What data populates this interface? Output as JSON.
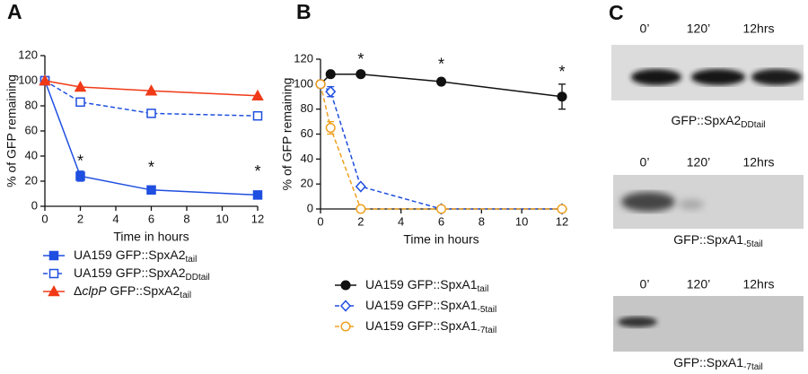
{
  "chart_data": [
    {
      "type": "line",
      "panel_label": "A",
      "xlabel": "Time in hours",
      "ylabel": "% of GFP remaining",
      "xlim": [
        0,
        12
      ],
      "xticks": [
        0,
        2,
        4,
        6,
        8,
        10,
        12
      ],
      "ylim": [
        0,
        120
      ],
      "yticks": [
        0,
        20,
        40,
        60,
        80,
        100,
        120
      ],
      "series": [
        {
          "name": [
            {
              "text": "UA159 GFP::SpxA2"
            },
            {
              "text": "tail",
              "sub": true
            }
          ],
          "color": "#1f4fe0",
          "marker": "square",
          "filled": true,
          "dashed": false,
          "x": [
            0,
            2,
            6,
            12
          ],
          "values": [
            100,
            24,
            13,
            9
          ],
          "errors": [
            null,
            4,
            2,
            3
          ]
        },
        {
          "name": [
            {
              "text": "UA159 GFP::SpxA2"
            },
            {
              "text": "DDtail",
              "sub": true
            }
          ],
          "color": "#1f4fe0",
          "marker": "square",
          "filled": false,
          "dashed": true,
          "x": [
            0,
            2,
            6,
            12
          ],
          "values": [
            100,
            83,
            74,
            72
          ],
          "errors": [
            null,
            2,
            null,
            null
          ]
        },
        {
          "name": [
            {
              "text": "Δ"
            },
            {
              "text": "clpP",
              "italic": true
            },
            {
              "text": " GFP::SpxA2"
            },
            {
              "text": "tail",
              "sub": true
            }
          ],
          "color": "#f03a17",
          "marker": "triangle",
          "filled": true,
          "dashed": false,
          "x": [
            0,
            2,
            6,
            12
          ],
          "values": [
            100,
            95,
            92,
            88
          ],
          "errors": [
            null,
            null,
            null,
            null
          ]
        }
      ],
      "annotations": [
        {
          "text": "*",
          "x": 2,
          "y": 38
        },
        {
          "text": "*",
          "x": 6,
          "y": 33
        },
        {
          "text": "*",
          "x": 12,
          "y": 30
        }
      ]
    },
    {
      "type": "line",
      "panel_label": "B",
      "xlabel": "Time in hours",
      "ylabel": "% of GFP remaining",
      "xlim": [
        0,
        12
      ],
      "xticks": [
        0,
        2,
        4,
        6,
        8,
        10,
        12
      ],
      "ylim": [
        0,
        120
      ],
      "yticks": [
        0,
        20,
        40,
        60,
        80,
        100,
        120
      ],
      "series": [
        {
          "name": [
            {
              "text": "UA159 GFP::SpxA1"
            },
            {
              "text": "tail",
              "sub": true
            }
          ],
          "color": "#111111",
          "marker": "circle",
          "filled": true,
          "dashed": false,
          "x": [
            0,
            0.5,
            2,
            6,
            12
          ],
          "values": [
            100,
            108,
            108,
            102,
            90
          ],
          "errors": [
            null,
            null,
            2,
            null,
            10
          ]
        },
        {
          "name": [
            {
              "text": "UA159 GFP::SpxA1"
            },
            {
              "text": "-5tail",
              "sub": true
            }
          ],
          "color": "#1f4fe0",
          "marker": "diamond",
          "filled": false,
          "dashed": true,
          "x": [
            0,
            0.5,
            2,
            6,
            12
          ],
          "values": [
            100,
            94,
            18,
            0,
            0
          ],
          "errors": [
            null,
            4,
            null,
            null,
            null
          ]
        },
        {
          "name": [
            {
              "text": "UA159 GFP::SpxA1"
            },
            {
              "text": "-7tail",
              "sub": true
            }
          ],
          "color": "#f0a020",
          "marker": "circle",
          "filled": false,
          "dashed": true,
          "x": [
            0,
            0.5,
            2,
            6,
            12
          ],
          "values": [
            100,
            65,
            0,
            0,
            0
          ],
          "errors": [
            null,
            5,
            null,
            null,
            null
          ]
        }
      ],
      "annotations": [
        {
          "text": "*",
          "x": 2,
          "y": 122
        },
        {
          "text": "*",
          "x": 6,
          "y": 118
        },
        {
          "text": "*",
          "x": 12,
          "y": 112
        }
      ]
    }
  ],
  "blot_panel": {
    "panel_label": "C",
    "blots": [
      {
        "lanes": [
          "0’",
          "120’",
          "12hrs"
        ],
        "caption": [
          {
            "text": "GFP::SpxA2"
          },
          {
            "text": "DDtail",
            "sub": true
          }
        ]
      },
      {
        "lanes": [
          "0’",
          "120’",
          "12hrs"
        ],
        "caption": [
          {
            "text": "GFP::SpxA1"
          },
          {
            "text": "-5tail",
            "sub": true
          }
        ]
      },
      {
        "lanes": [
          "0’",
          "120’",
          "12hrs"
        ],
        "caption": [
          {
            "text": "GFP::SpxA1"
          },
          {
            "text": "-7tail",
            "sub": true
          }
        ]
      }
    ]
  }
}
